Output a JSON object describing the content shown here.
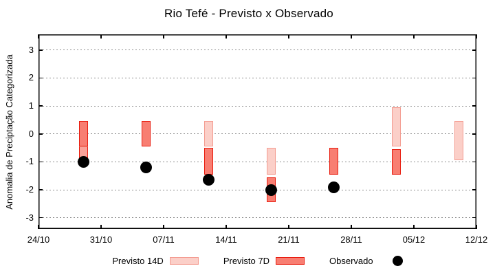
{
  "chart_data": {
    "type": "bar",
    "title": "Rio Tefé - Previsto x Observado",
    "ylabel": "Anomalia de Preciptação Categorizada",
    "ylim": [
      -3.4,
      3.56
    ],
    "xlim_days": [
      0,
      49
    ],
    "grid": true,
    "legend_position": "bottom",
    "y_ticks": [
      3,
      2,
      1,
      0,
      -1,
      -2,
      -3
    ],
    "x_ticks": {
      "days": [
        0,
        7,
        14,
        21,
        28,
        35,
        42,
        49
      ],
      "labels": [
        "24/10",
        "31/10",
        "07/11",
        "14/11",
        "21/11",
        "28/11",
        "05/12",
        "12/12"
      ]
    },
    "groups": [
      {
        "date": "29/10",
        "day": 5,
        "bars": [
          {
            "hi": 0.45,
            "lo": -0.45,
            "style": "previsto7d"
          },
          {
            "hi": -0.45,
            "lo": -0.95,
            "style": "overlap"
          }
        ],
        "observado": -1.0
      },
      {
        "date": "05/11",
        "day": 12,
        "bars": [
          {
            "hi": 0.45,
            "lo": -0.45,
            "style": "previsto7d"
          }
        ],
        "observado": -1.2
      },
      {
        "date": "12/11",
        "day": 19,
        "bars": [
          {
            "hi": 0.45,
            "lo": -0.45,
            "style": "previsto14d"
          },
          {
            "hi": -0.5,
            "lo": -1.45,
            "style": "previsto7d"
          }
        ],
        "observado": -1.65
      },
      {
        "date": "19/11",
        "day": 26,
        "bars": [
          {
            "hi": -0.5,
            "lo": -1.45,
            "style": "previsto14d"
          },
          {
            "hi": -1.55,
            "lo": -2.45,
            "style": "previsto7d"
          }
        ],
        "observado": -2.0
      },
      {
        "date": "26/11",
        "day": 33,
        "bars": [
          {
            "hi": -0.5,
            "lo": -1.45,
            "style": "previsto7d"
          }
        ],
        "observado": -1.9
      },
      {
        "date": "03/12",
        "day": 40,
        "bars": [
          {
            "hi": 0.95,
            "lo": -0.45,
            "style": "previsto14d"
          },
          {
            "hi": -0.55,
            "lo": -1.45,
            "style": "previsto7d"
          }
        ],
        "observado": null
      },
      {
        "date": "10/12",
        "day": 47,
        "bars": [
          {
            "hi": 0.45,
            "lo": -0.95,
            "style": "previsto14d"
          }
        ],
        "observado": null
      }
    ],
    "legend": [
      {
        "label": "Previsto 14D",
        "marker": "previsto14d"
      },
      {
        "label": "Previsto 7D",
        "marker": "previsto7d"
      },
      {
        "label": "Observado",
        "marker": "observado"
      }
    ],
    "colors": {
      "previsto14d_fill": "#fbcfc8",
      "previsto14d_border": "#f49b90",
      "previsto7d_fill": "#f87e72",
      "previsto7d_border": "#e81b0d",
      "overlap_fill": "#faa39a",
      "observado": "#000000",
      "grid": "#8c8c8c",
      "axis": "#000000"
    }
  }
}
